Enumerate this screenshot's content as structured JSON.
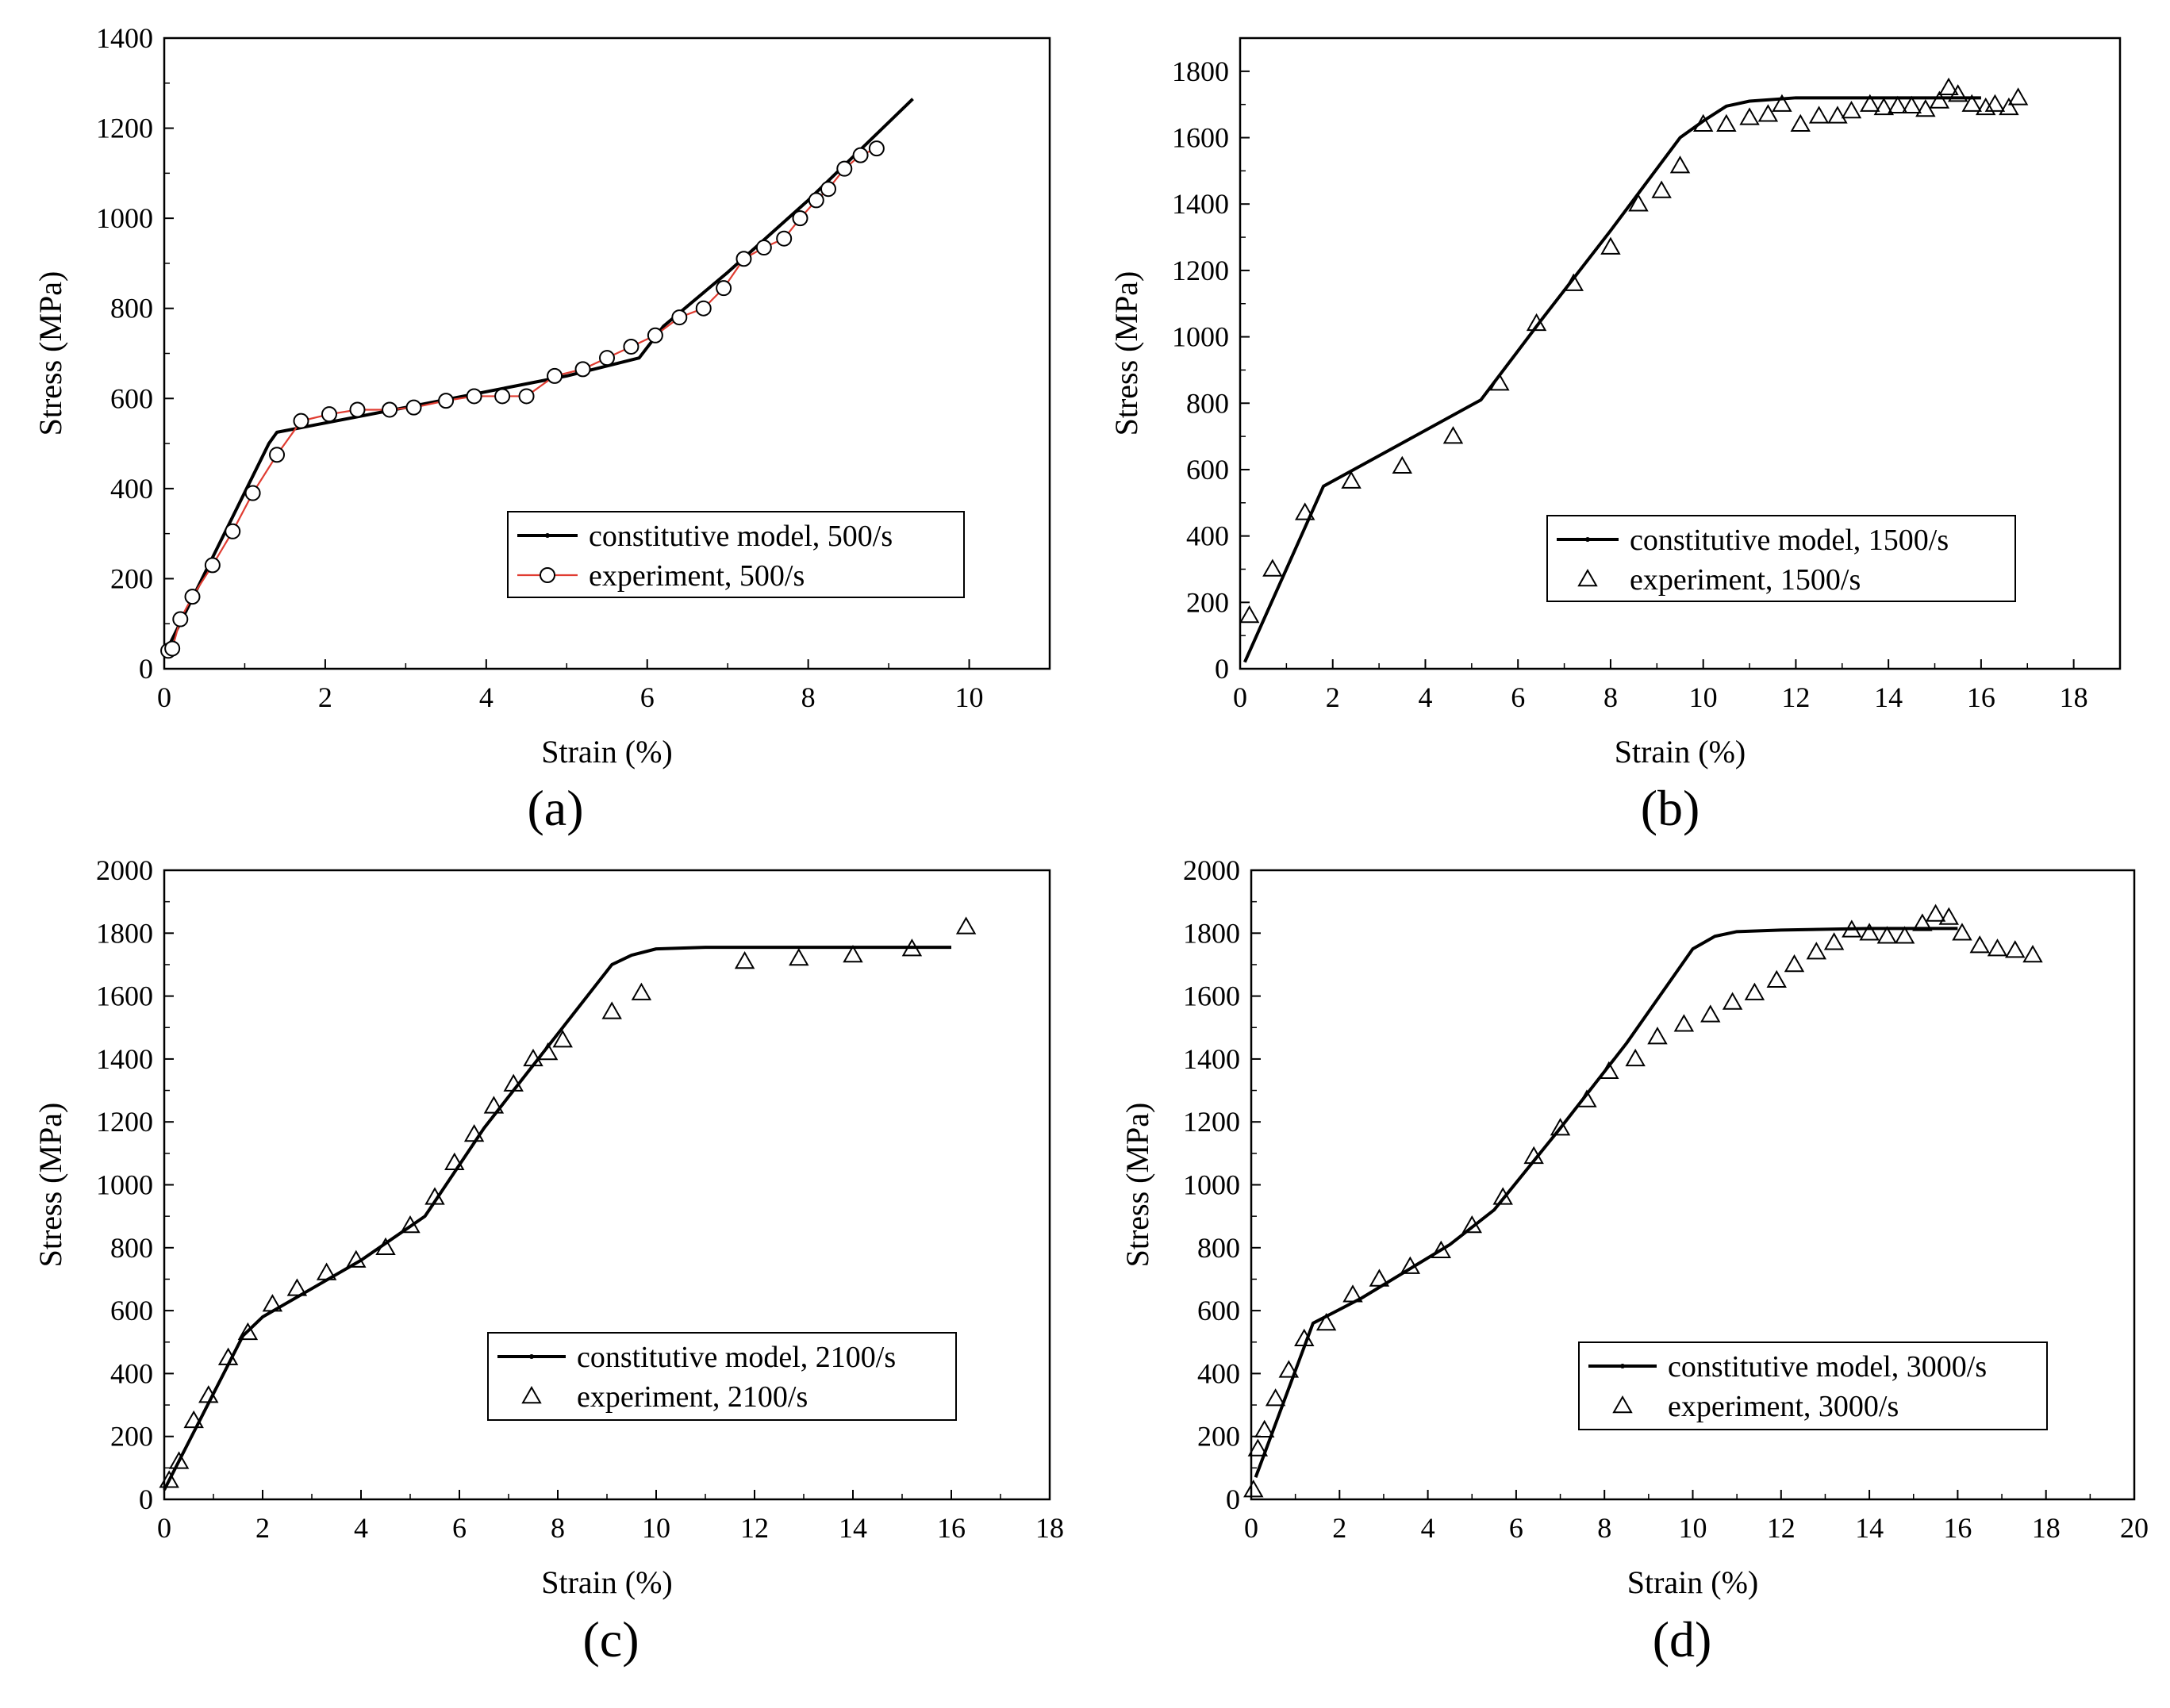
{
  "figure": {
    "panels": [
      "(a)",
      "(b)",
      "(c)",
      "(d)"
    ]
  },
  "chart_data": [
    {
      "id": "a",
      "type": "line",
      "label": "(a)",
      "xlabel": "Strain (%)",
      "ylabel": "Stress (MPa)",
      "xlim": [
        0,
        11
      ],
      "ylim": [
        0,
        1400
      ],
      "xticks": [
        0,
        2,
        4,
        6,
        8,
        10
      ],
      "yticks": [
        0,
        200,
        400,
        600,
        800,
        1000,
        1200,
        1400
      ],
      "legend_position": "bottom-right",
      "series": [
        {
          "name": "constitutive model, 500/s",
          "kind": "line",
          "color": "#000000",
          "x": [
            0,
            1.3,
            1.4,
            3.0,
            5.0,
            5.9,
            6.2,
            7.0,
            8.0,
            9.3
          ],
          "y": [
            30,
            500,
            525,
            580,
            650,
            690,
            760,
            880,
            1040,
            1265
          ]
        },
        {
          "name": "experiment, 500/s",
          "kind": "line-markers",
          "marker": "circle",
          "color": "#e03c31",
          "x": [
            0.05,
            0.1,
            0.2,
            0.35,
            0.6,
            0.85,
            1.1,
            1.4,
            1.7,
            2.05,
            2.4,
            2.8,
            3.1,
            3.5,
            3.85,
            4.2,
            4.5,
            4.85,
            5.2,
            5.5,
            5.8,
            6.1,
            6.4,
            6.7,
            6.95,
            7.2,
            7.45,
            7.7,
            7.9,
            8.1,
            8.25,
            8.45,
            8.65,
            8.85
          ],
          "y": [
            40,
            45,
            110,
            160,
            230,
            305,
            390,
            475,
            550,
            565,
            575,
            575,
            580,
            595,
            605,
            605,
            605,
            650,
            665,
            690,
            715,
            740,
            780,
            800,
            845,
            910,
            935,
            955,
            1000,
            1040,
            1065,
            1110,
            1140,
            1155
          ]
        }
      ]
    },
    {
      "id": "b",
      "type": "line",
      "label": "(b)",
      "xlabel": "Strain (%)",
      "ylabel": "Stress (MPa)",
      "xlim": [
        0,
        19
      ],
      "ylim": [
        0,
        1900
      ],
      "xticks": [
        0,
        2,
        4,
        6,
        8,
        10,
        12,
        14,
        16,
        18
      ],
      "yticks": [
        0,
        200,
        400,
        600,
        800,
        1000,
        1200,
        1400,
        1600,
        1800
      ],
      "legend_position": "bottom-right",
      "series": [
        {
          "name": "constitutive model, 1500/s",
          "kind": "line",
          "color": "#000000",
          "x": [
            0.1,
            1.8,
            3.5,
            5.2,
            6.5,
            8.0,
            9.5,
            10.0,
            10.5,
            11.0,
            12.0,
            14.0,
            16.0
          ],
          "y": [
            20,
            550,
            680,
            810,
            1050,
            1320,
            1600,
            1650,
            1695,
            1710,
            1720,
            1720,
            1720
          ]
        },
        {
          "name": "experiment, 1500/s",
          "kind": "markers",
          "marker": "triangle",
          "color": "#000000",
          "x": [
            0.2,
            0.7,
            1.4,
            2.4,
            3.5,
            4.6,
            5.6,
            6.4,
            7.2,
            8.0,
            8.6,
            9.1,
            9.5,
            10.0,
            10.5,
            11.0,
            11.4,
            11.7,
            12.1,
            12.5,
            12.9,
            13.2,
            13.6,
            13.9,
            14.2,
            14.5,
            14.8,
            15.1,
            15.3,
            15.5,
            15.8,
            16.1,
            16.3,
            16.6,
            16.8
          ],
          "y": [
            160,
            300,
            470,
            565,
            610,
            700,
            860,
            1040,
            1160,
            1270,
            1400,
            1440,
            1515,
            1640,
            1640,
            1660,
            1670,
            1700,
            1640,
            1665,
            1665,
            1680,
            1700,
            1690,
            1695,
            1695,
            1685,
            1710,
            1750,
            1730,
            1700,
            1690,
            1700,
            1690,
            1720
          ]
        }
      ]
    },
    {
      "id": "c",
      "type": "line",
      "label": "(c)",
      "xlabel": "Strain (%)",
      "ylabel": "Stress (MPa)",
      "xlim": [
        0,
        18
      ],
      "ylim": [
        0,
        2000
      ],
      "xticks": [
        0,
        2,
        4,
        6,
        8,
        10,
        12,
        14,
        16,
        18
      ],
      "yticks": [
        0,
        200,
        400,
        600,
        800,
        1000,
        1200,
        1400,
        1600,
        1800,
        2000
      ],
      "legend_position": "bottom-right",
      "series": [
        {
          "name": "constitutive model, 2100/s",
          "kind": "line",
          "color": "#000000",
          "x": [
            0,
            1.6,
            2.0,
            4.0,
            5.3,
            6.5,
            8.0,
            9.1,
            9.5,
            10.0,
            11.0,
            13.0,
            16.0
          ],
          "y": [
            30,
            520,
            580,
            760,
            900,
            1180,
            1480,
            1700,
            1730,
            1750,
            1755,
            1755,
            1755
          ],
          "tail_x": [
            16.0
          ],
          "tail_y": [
            1755
          ]
        },
        {
          "name": "experiment, 2100/s",
          "kind": "markers",
          "marker": "triangle",
          "color": "#000000",
          "x": [
            0.1,
            0.3,
            0.6,
            0.9,
            1.3,
            1.7,
            2.2,
            2.7,
            3.3,
            3.9,
            4.5,
            5.0,
            5.5,
            5.9,
            6.3,
            6.7,
            7.1,
            7.5,
            7.8,
            8.1,
            9.1,
            9.7,
            11.8,
            12.9,
            14.0,
            15.2,
            16.3
          ],
          "y": [
            60,
            120,
            250,
            330,
            450,
            530,
            620,
            670,
            720,
            760,
            800,
            870,
            960,
            1070,
            1160,
            1250,
            1320,
            1400,
            1420,
            1460,
            1550,
            1610,
            1710,
            1720,
            1730,
            1750,
            1820
          ]
        }
      ]
    },
    {
      "id": "d",
      "type": "line",
      "label": "(d)",
      "xlabel": "Strain (%)",
      "ylabel": "Stress (MPa)",
      "xlim": [
        0,
        20
      ],
      "ylim": [
        0,
        2000
      ],
      "xticks": [
        0,
        2,
        4,
        6,
        8,
        10,
        12,
        14,
        16,
        18,
        20
      ],
      "yticks": [
        0,
        200,
        400,
        600,
        800,
        1000,
        1200,
        1400,
        1600,
        1800,
        2000
      ],
      "legend_position": "bottom-right",
      "series": [
        {
          "name": "constitutive model, 3000/s",
          "kind": "line",
          "color": "#000000",
          "x": [
            0.1,
            1.4,
            2.5,
            4.5,
            5.5,
            7.0,
            8.5,
            10.0,
            10.5,
            11.0,
            12.0,
            14.0,
            16.0
          ],
          "y": [
            70,
            560,
            640,
            810,
            920,
            1180,
            1450,
            1750,
            1790,
            1805,
            1810,
            1815,
            1815
          ]
        },
        {
          "name": "experiment, 3000/s",
          "kind": "markers",
          "marker": "triangle",
          "color": "#000000",
          "x": [
            0.05,
            0.15,
            0.3,
            0.55,
            0.85,
            1.2,
            1.7,
            2.3,
            2.9,
            3.6,
            4.3,
            5.0,
            5.7,
            6.4,
            7.0,
            7.6,
            8.1,
            8.7,
            9.2,
            9.8,
            10.4,
            10.9,
            11.4,
            11.9,
            12.3,
            12.8,
            13.2,
            13.6,
            14.0,
            14.4,
            14.8,
            15.2,
            15.5,
            15.8,
            16.1,
            16.5,
            16.9,
            17.3,
            17.7
          ],
          "y": [
            30,
            160,
            220,
            320,
            410,
            510,
            560,
            650,
            700,
            740,
            790,
            870,
            960,
            1090,
            1180,
            1270,
            1360,
            1400,
            1470,
            1510,
            1540,
            1580,
            1610,
            1650,
            1700,
            1740,
            1770,
            1810,
            1800,
            1790,
            1790,
            1830,
            1860,
            1850,
            1800,
            1760,
            1750,
            1745,
            1730
          ]
        }
      ]
    }
  ]
}
